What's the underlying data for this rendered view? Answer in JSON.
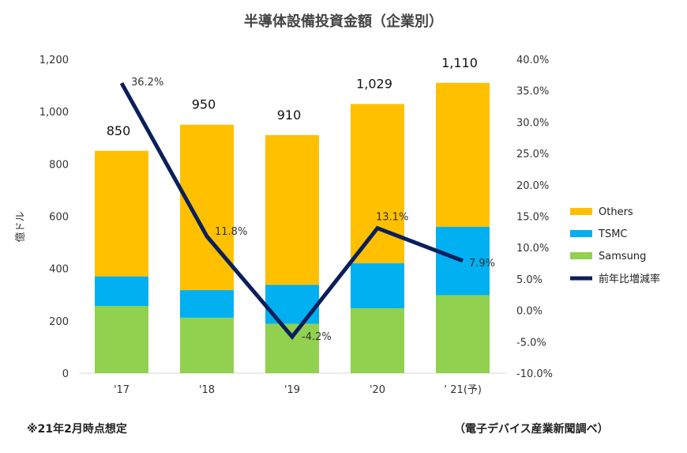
{
  "chart_data": {
    "type": "bar",
    "title": "半導体設備投資金額（企業別）",
    "ylabel": "億ドル",
    "categories": [
      "'17",
      "'18",
      "'19",
      "'20",
      "’ 21(予)"
    ],
    "ylim": [
      0,
      1200
    ],
    "yticks": [
      "0",
      "200",
      "400",
      "600",
      "800",
      "1,000",
      "1,200"
    ],
    "y2lim": [
      -10,
      40
    ],
    "y2ticks": [
      "-10.0%",
      "-5.0%",
      "0.0%",
      "5.0%",
      "10.0%",
      "15.0%",
      "20.0%",
      "25.0%",
      "30.0%",
      "35.0%",
      "40.0%"
    ],
    "series": [
      {
        "name": "Samsung",
        "color": "#92d050",
        "values": [
          257,
          212,
          189,
          248,
          298
        ]
      },
      {
        "name": "TSMC",
        "color": "#00b0f0",
        "values": [
          113,
          106,
          149,
          172,
          262
        ]
      },
      {
        "name": "Others",
        "color": "#ffc000",
        "values": [
          480,
          632,
          572,
          609,
          550
        ]
      }
    ],
    "totals": [
      "850",
      "950",
      "910",
      "1,029",
      "1,110"
    ],
    "line": {
      "name": "前年比増減率",
      "color": "#0b1f5c",
      "values": [
        36.2,
        11.8,
        -4.2,
        13.1,
        7.9
      ],
      "labels": [
        "36.2%",
        "11.8%",
        "-4.2%",
        "13.1%",
        "7.9%"
      ]
    },
    "legend_position": "right",
    "grid": false
  },
  "notes": {
    "left": "※21年2月時点想定",
    "right": "（電子デバイス産業新聞調べ）"
  }
}
